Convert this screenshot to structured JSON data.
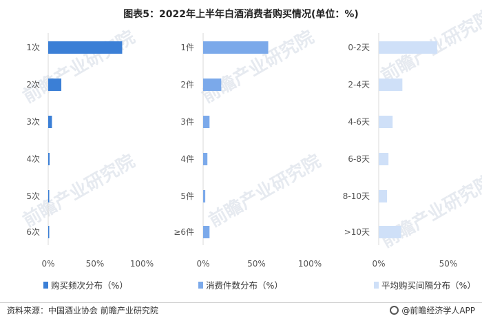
{
  "title": "图表5：2022年上半年白酒消费者购买情况(单位：%)",
  "watermark": "前瞻产业研究院",
  "source": "资料来源：中国酒业协会 前瞻产业研究院",
  "brand": "@前瞻经济学人APP",
  "chart_data": [
    {
      "type": "bar",
      "orientation": "horizontal",
      "categories": [
        "1次",
        "2次",
        "3次",
        "4次",
        "5次",
        "6次"
      ],
      "values": [
        79,
        14,
        4,
        1.5,
        0.8,
        0.8
      ],
      "xticks": [
        "0%",
        "50%",
        "100%"
      ],
      "xlim": [
        0,
        100
      ],
      "legend": "购买频次分布（%）",
      "color": "#3b7fd6"
    },
    {
      "type": "bar",
      "orientation": "horizontal",
      "categories": [
        "1件",
        "2件",
        "3件",
        "4件",
        "5件",
        "≥6件"
      ],
      "values": [
        61,
        17,
        6,
        4,
        2,
        6
      ],
      "xticks": [
        "0%",
        "50%",
        "100%"
      ],
      "xlim": [
        0,
        100
      ],
      "legend": "消费件数分布（%）",
      "color": "#7ba9ea"
    },
    {
      "type": "bar",
      "orientation": "horizontal",
      "categories": [
        "0-2天",
        "2-4天",
        "4-6天",
        "6-8天",
        "8-10天",
        ">10天"
      ],
      "values": [
        42,
        17,
        10,
        7,
        6,
        16
      ],
      "xticks": [
        "0%",
        "50%"
      ],
      "xlim": [
        0,
        50
      ],
      "legend": "平均购买间隔分布（%）",
      "color": "#cfe0f8"
    }
  ]
}
